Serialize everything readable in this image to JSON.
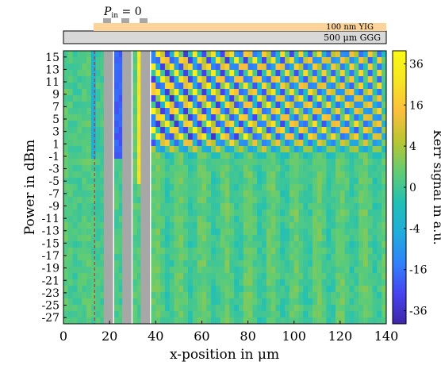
{
  "inset": {
    "pin_label": "P",
    "pin_sub": "in",
    "pin_value": " = 0",
    "yig_label": "100 nm  YIG",
    "ggg_label": "500 μm  GGG",
    "yig_color": "#fcd49a",
    "yig_text_color": "#e0843a",
    "ggg_color": "#d8d8d8",
    "electrode_color": "#a7a7a7"
  },
  "chart_data": {
    "type": "heatmap",
    "xlabel": "x-position in μm",
    "ylabel": "Power in dBm",
    "colorbar_label": "Kerr signal in a.u.",
    "xlim": [
      0,
      140
    ],
    "ylim": [
      -28,
      16
    ],
    "x_ticks": [
      0,
      20,
      40,
      60,
      80,
      100,
      120,
      140
    ],
    "y_ticks": [
      15,
      13,
      11,
      9,
      7,
      5,
      3,
      1,
      -1,
      -3,
      -5,
      -7,
      -9,
      -11,
      -13,
      -15,
      -17,
      -19,
      -21,
      -23,
      -25,
      -27
    ],
    "colorbar_ticks": [
      36,
      16,
      4,
      0,
      -4,
      -16,
      -36
    ],
    "colorbar_range": [
      -44,
      44
    ],
    "colormap": [
      "#3e26a8",
      "#4743f0",
      "#2f82fb",
      "#1faddb",
      "#21c0b5",
      "#62cc73",
      "#b8c632",
      "#fbbe3d",
      "#f7e523",
      "#fafa14"
    ],
    "power_levels_dBm": [
      15,
      14,
      13,
      12,
      11,
      10,
      9,
      8,
      7,
      6,
      5,
      4,
      3,
      2,
      1,
      0,
      -1,
      -2,
      -3,
      -4,
      -5,
      -6,
      -7,
      -8,
      -9,
      -10,
      -11,
      -12,
      -13,
      -14,
      -15,
      -16,
      -17,
      -18,
      -19,
      -20,
      -21,
      -22,
      -23,
      -24,
      -25,
      -26,
      -27
    ],
    "electrodes_x_um": [
      [
        17.5,
        21.5
      ],
      [
        25.5,
        29.5
      ],
      [
        33.5,
        37.5
      ]
    ],
    "antenna_edge_x_um": 13.5,
    "sw_onset_power_dBm": -1,
    "sw_onset_x_um": 38,
    "sw_wavelength_um": 10,
    "grid": false
  }
}
